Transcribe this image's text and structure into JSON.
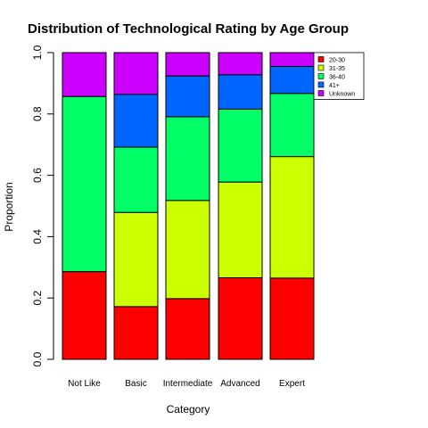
{
  "chart_data": {
    "type": "bar",
    "stacked": true,
    "title": "Distribution of Technological Rating by Age Group",
    "xlabel": "Category",
    "ylabel": "Proportion",
    "ylim": [
      0,
      1
    ],
    "yticks": [
      "0.0",
      "0.2",
      "0.4",
      "0.6",
      "0.8",
      "1.0"
    ],
    "categories": [
      "Not Like",
      "Basic",
      "Intermediate",
      "Advanced",
      "Expert"
    ],
    "legend_position": "top-right",
    "series": [
      {
        "name": "20-30",
        "color": "#FF0000",
        "values": [
          0.286,
          0.172,
          0.198,
          0.266,
          0.265
        ]
      },
      {
        "name": "31-35",
        "color": "#CCFF00",
        "values": [
          0.0,
          0.307,
          0.32,
          0.312,
          0.396
        ]
      },
      {
        "name": "36-40",
        "color": "#00FF66",
        "values": [
          0.571,
          0.213,
          0.273,
          0.238,
          0.206
        ]
      },
      {
        "name": "41+",
        "color": "#0066FF",
        "values": [
          0.0,
          0.172,
          0.133,
          0.112,
          0.088
        ]
      },
      {
        "name": "Unknown",
        "color": "#CC00FF",
        "values": [
          0.143,
          0.136,
          0.076,
          0.072,
          0.045
        ]
      }
    ]
  }
}
